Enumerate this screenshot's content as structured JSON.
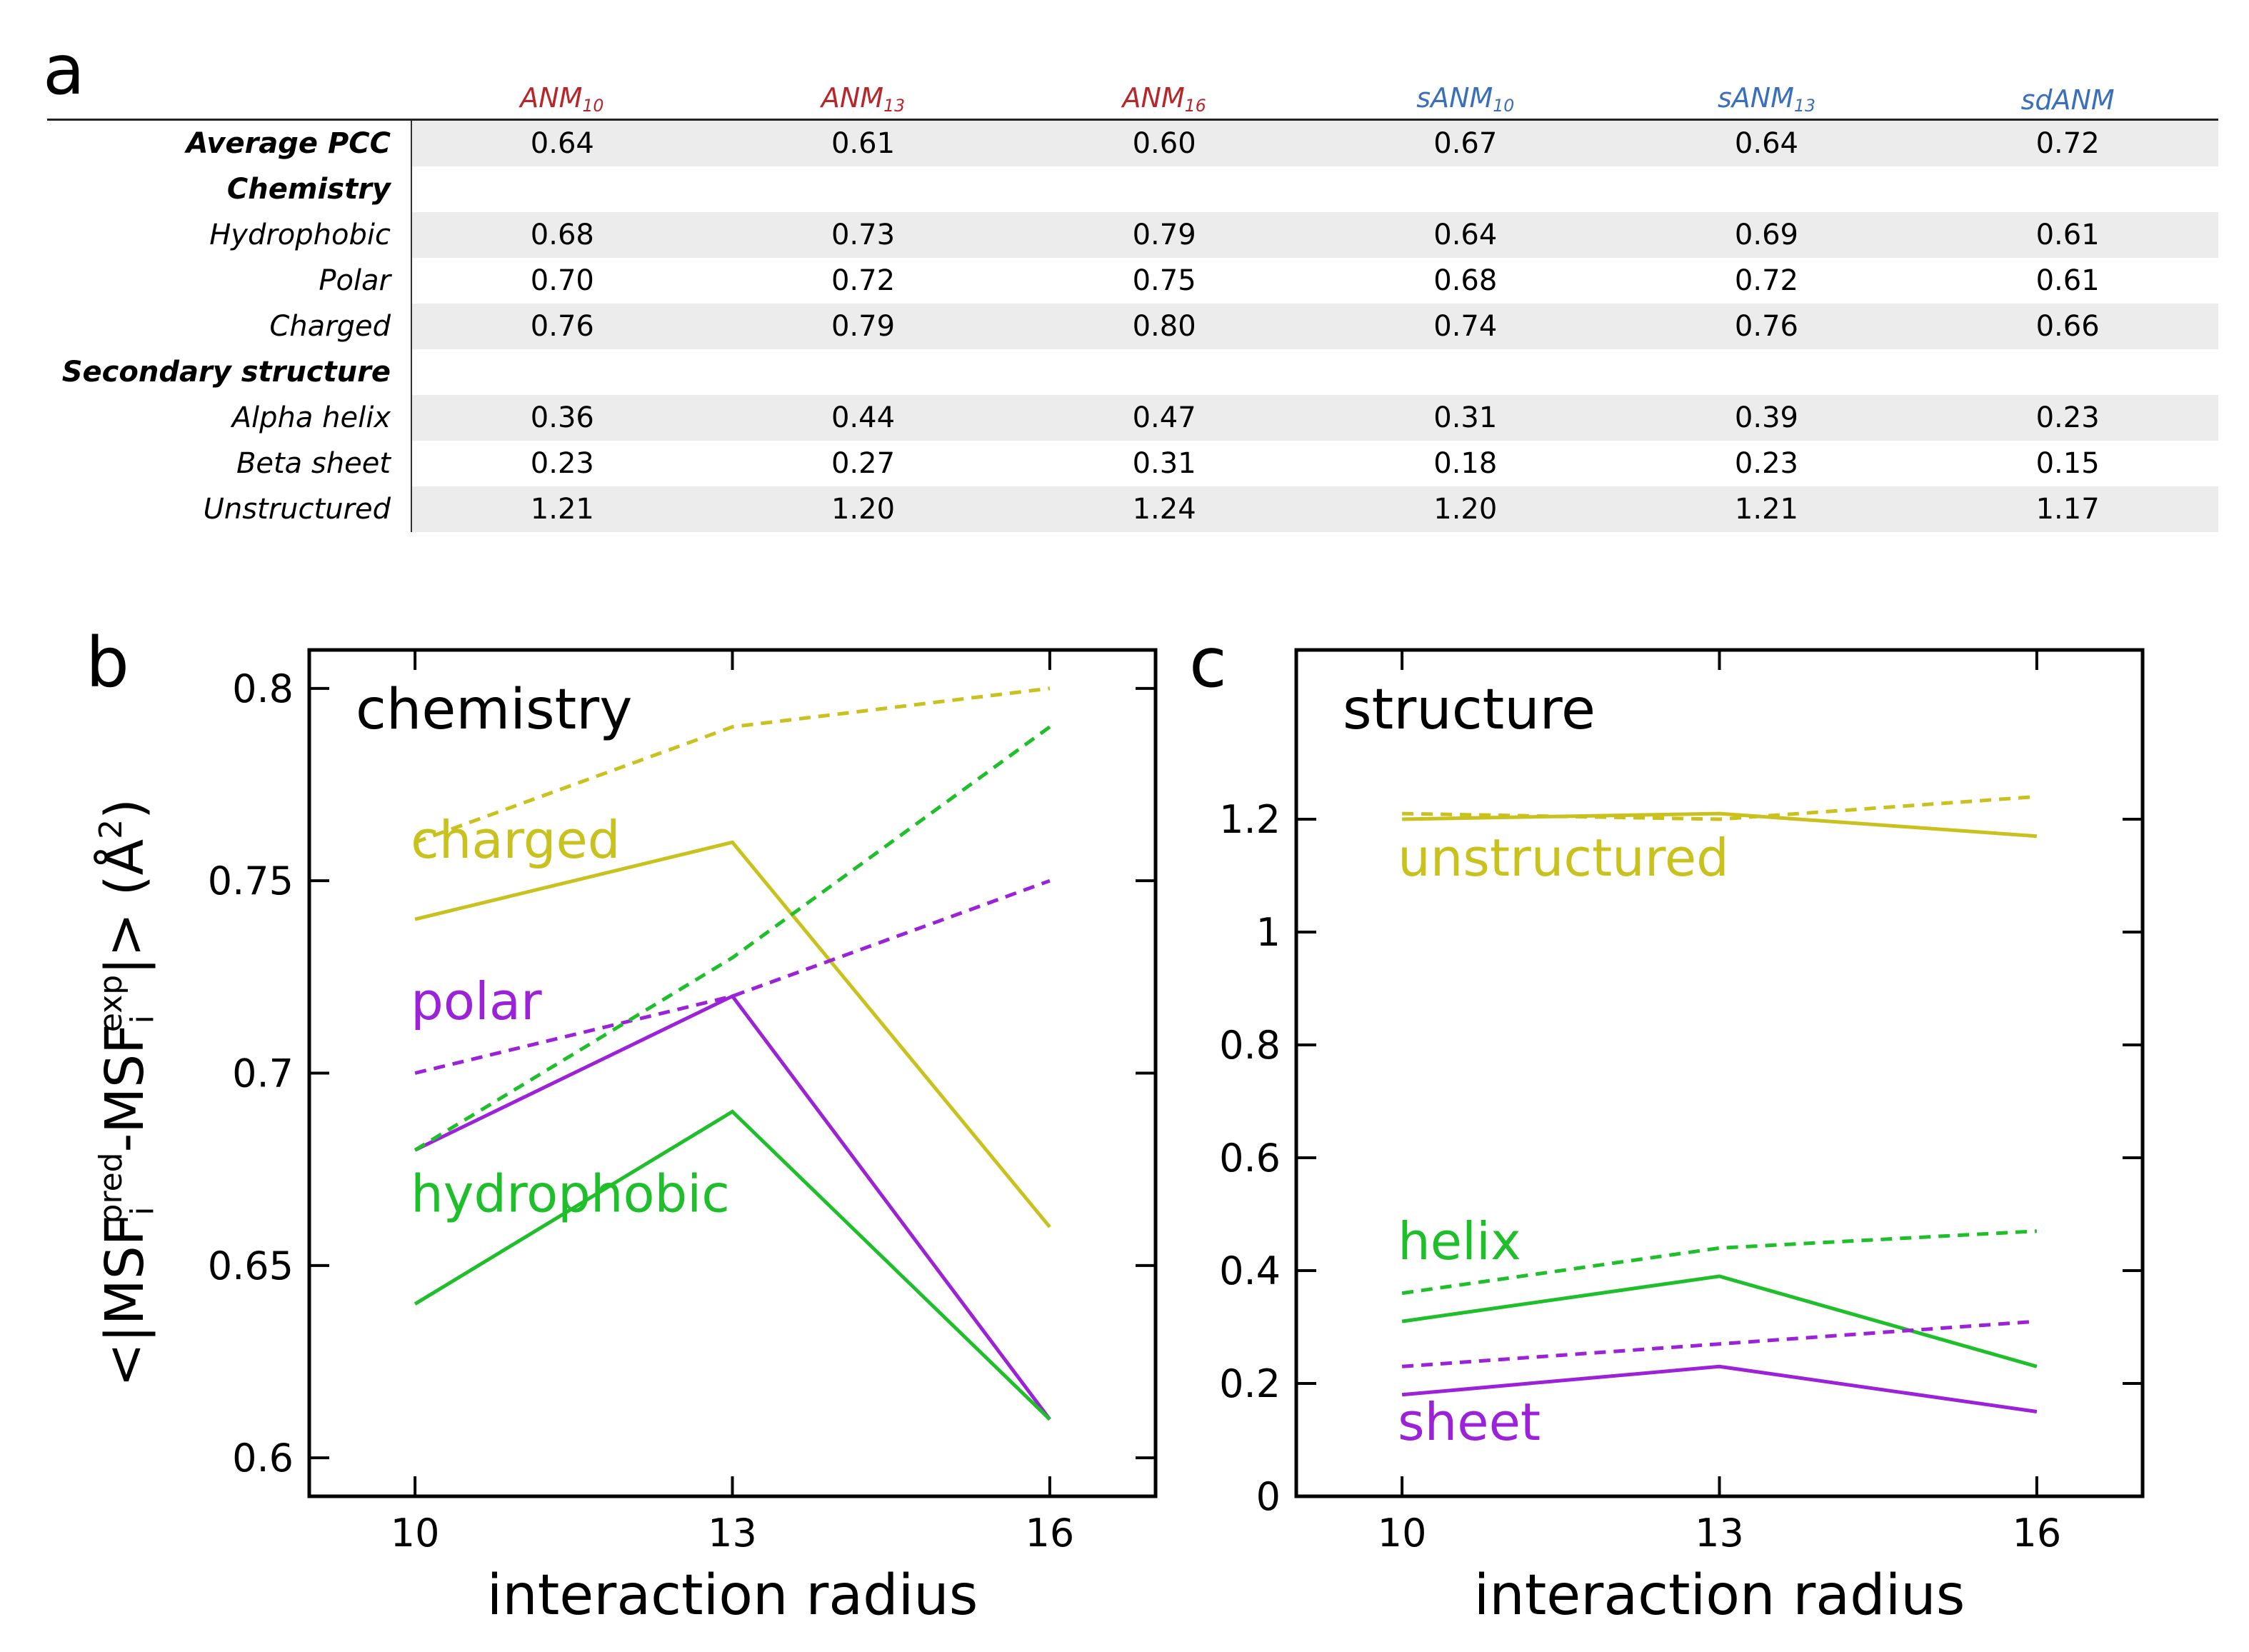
{
  "panels": {
    "a": "a",
    "b": "b",
    "c": "c"
  },
  "colors": {
    "red": "#b7262a",
    "blue": "#3a6fbd",
    "yellow": "#c9c21e",
    "purple": "#9b22d8",
    "green": "#1fbf2b",
    "axis": "#000000"
  },
  "table": {
    "columns": [
      {
        "base": "ANM",
        "sub": "10",
        "color": "red"
      },
      {
        "base": "ANM",
        "sub": "13",
        "color": "red"
      },
      {
        "base": "ANM",
        "sub": "16",
        "color": "red"
      },
      {
        "base": "sANM",
        "sub": "10",
        "color": "blue"
      },
      {
        "base": "sANM",
        "sub": "13",
        "color": "blue"
      },
      {
        "base": "sdANM",
        "sub": "",
        "color": "blue"
      }
    ],
    "rows": [
      {
        "label": "Average PCC",
        "bold": true,
        "values": [
          "0.64",
          "0.61",
          "0.60",
          "0.67",
          "0.64",
          "0.72"
        ]
      },
      {
        "label": "Chemistry",
        "bold": true,
        "values": []
      },
      {
        "label": "Hydrophobic",
        "bold": false,
        "values": [
          "0.68",
          "0.73",
          "0.79",
          "0.64",
          "0.69",
          "0.61"
        ]
      },
      {
        "label": "Polar",
        "bold": false,
        "values": [
          "0.70",
          "0.72",
          "0.75",
          "0.68",
          "0.72",
          "0.61"
        ]
      },
      {
        "label": "Charged",
        "bold": false,
        "values": [
          "0.76",
          "0.79",
          "0.80",
          "0.74",
          "0.76",
          "0.66"
        ]
      },
      {
        "label": "Secondary structure",
        "bold": true,
        "values": []
      },
      {
        "label": "Alpha helix",
        "bold": false,
        "values": [
          "0.36",
          "0.44",
          "0.47",
          "0.31",
          "0.39",
          "0.23"
        ]
      },
      {
        "label": "Beta sheet",
        "bold": false,
        "values": [
          "0.23",
          "0.27",
          "0.31",
          "0.18",
          "0.23",
          "0.15"
        ]
      },
      {
        "label": "Unstructured",
        "bold": false,
        "values": [
          "1.21",
          "1.20",
          "1.24",
          "1.20",
          "1.21",
          "1.17"
        ]
      }
    ]
  },
  "ylabel": {
    "open": "<|MSF",
    "sub1": "i",
    "sup1": "pred",
    "dash": "-MSF",
    "sub2": "i",
    "sup2": "exp",
    "close": "|> (Å",
    "sq": "2",
    "end": ")"
  },
  "chart_data": [
    {
      "type": "line",
      "title": "chemistry",
      "xlabel": "interaction radius",
      "ylabel": "<|MSF_i^pred-MSF_i^exp|> (Å^2)",
      "x": [
        10,
        13,
        16
      ],
      "xticks": [
        "10",
        "13",
        "16"
      ],
      "xlim": [
        9,
        17
      ],
      "ylim": [
        0.59,
        0.81
      ],
      "yticks": [
        "0.6",
        "0.65",
        "0.7",
        "0.75",
        "0.8"
      ],
      "yticks_values": [
        0.6,
        0.65,
        0.7,
        0.75,
        0.8
      ],
      "series": [
        {
          "name": "charged (ANM)",
          "color": "yellow",
          "dash": true,
          "values": [
            0.76,
            0.79,
            0.8
          ]
        },
        {
          "name": "charged (sANM)",
          "color": "yellow",
          "dash": false,
          "values": [
            0.74,
            0.76,
            0.66
          ]
        },
        {
          "name": "polar (ANM)",
          "color": "purple",
          "dash": true,
          "values": [
            0.7,
            0.72,
            0.75
          ]
        },
        {
          "name": "polar (sANM)",
          "color": "purple",
          "dash": false,
          "values": [
            0.68,
            0.72,
            0.61
          ]
        },
        {
          "name": "hydrophobic (ANM)",
          "color": "green",
          "dash": true,
          "values": [
            0.68,
            0.73,
            0.79
          ]
        },
        {
          "name": "hydrophobic (sANM)",
          "color": "green",
          "dash": false,
          "values": [
            0.64,
            0.69,
            0.61
          ]
        }
      ],
      "labels": [
        {
          "text": "charged",
          "color": "yellow",
          "x": 10,
          "y": 0.756
        },
        {
          "text": "polar",
          "color": "purple",
          "x": 10,
          "y": 0.714
        },
        {
          "text": "hydrophobic",
          "color": "green",
          "x": 10,
          "y": 0.664
        }
      ]
    },
    {
      "type": "line",
      "title": "structure",
      "xlabel": "interaction radius",
      "x": [
        10,
        13,
        16
      ],
      "xticks": [
        "10",
        "13",
        "16"
      ],
      "xlim": [
        9,
        17
      ],
      "ylim": [
        0,
        1.5
      ],
      "yticks": [
        "0",
        "0.2",
        "0.4",
        "0.6",
        "0.8",
        "1",
        "1.2"
      ],
      "yticks_values": [
        0,
        0.2,
        0.4,
        0.6,
        0.8,
        1.0,
        1.2
      ],
      "series": [
        {
          "name": "unstructured (ANM)",
          "color": "yellow",
          "dash": true,
          "values": [
            1.21,
            1.2,
            1.24
          ]
        },
        {
          "name": "unstructured (sANM)",
          "color": "yellow",
          "dash": false,
          "values": [
            1.2,
            1.21,
            1.17
          ]
        },
        {
          "name": "helix (ANM)",
          "color": "green",
          "dash": true,
          "values": [
            0.36,
            0.44,
            0.47
          ]
        },
        {
          "name": "helix (sANM)",
          "color": "green",
          "dash": false,
          "values": [
            0.31,
            0.39,
            0.23
          ]
        },
        {
          "name": "sheet (ANM)",
          "color": "purple",
          "dash": true,
          "values": [
            0.23,
            0.27,
            0.31
          ]
        },
        {
          "name": "sheet (sANM)",
          "color": "purple",
          "dash": false,
          "values": [
            0.18,
            0.23,
            0.15
          ]
        }
      ],
      "labels": [
        {
          "text": "unstructured",
          "color": "yellow",
          "x": 10,
          "y": 1.1
        },
        {
          "text": "helix",
          "color": "green",
          "x": 10,
          "y": 0.42
        },
        {
          "text": "sheet",
          "color": "purple",
          "x": 10,
          "y": 0.1
        }
      ]
    }
  ]
}
